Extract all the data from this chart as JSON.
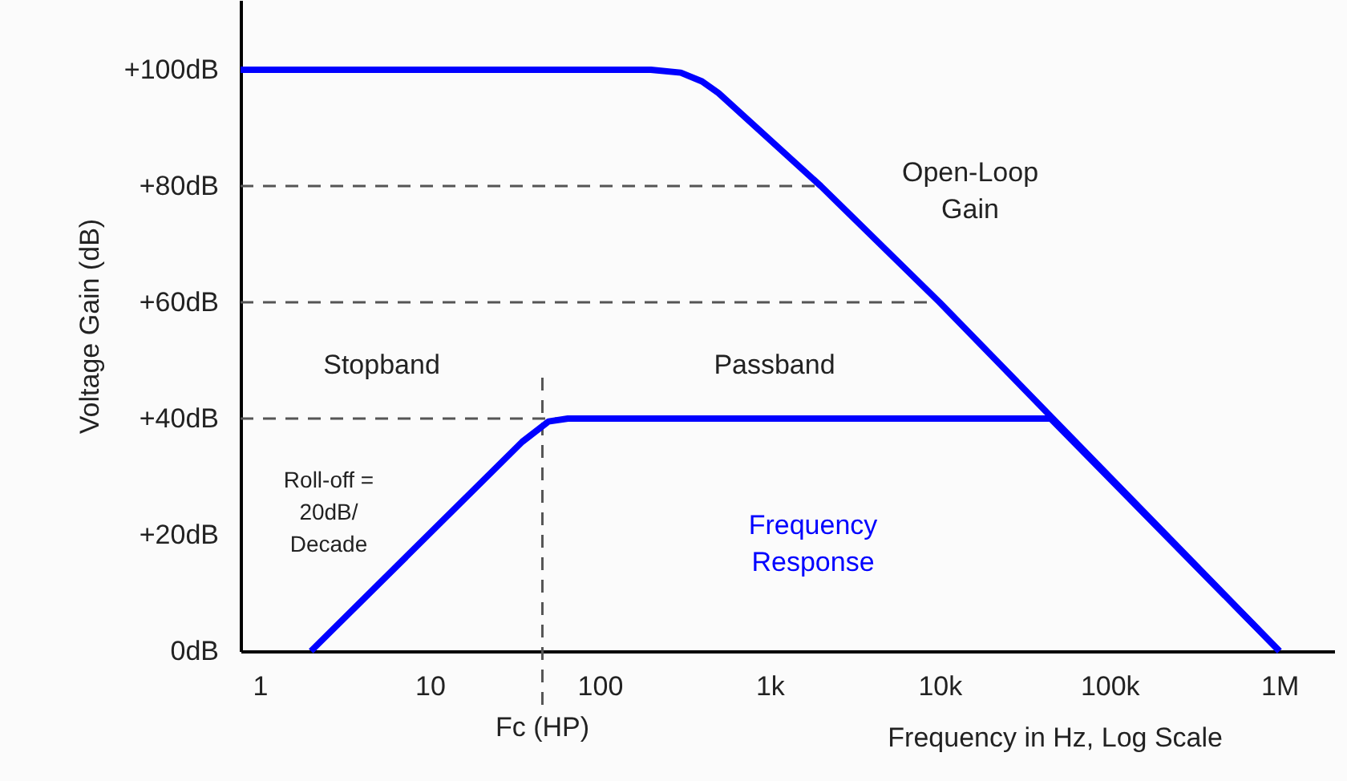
{
  "chart_data": {
    "type": "line",
    "xlabel": "Frequency in Hz, Log Scale",
    "ylabel": "Voltage Gain (dB)",
    "log": "x",
    "xlim": [
      0.77,
      2100000
    ],
    "ylim": [
      0,
      112
    ],
    "xticks": [
      1,
      10,
      100,
      {
        "value": 1000,
        "label": "1k"
      },
      {
        "value": 10000,
        "label": "10k"
      },
      {
        "value": 100000,
        "label": "100k"
      },
      {
        "value": 1000000,
        "label": "1M"
      }
    ],
    "yticks": [
      {
        "value": 0,
        "label": "0dB"
      },
      {
        "value": 20,
        "label": "+20dB"
      },
      {
        "value": 40,
        "label": "+40dB"
      },
      {
        "value": 60,
        "label": "+60dB"
      },
      {
        "value": 80,
        "label": "+80dB"
      },
      {
        "value": 100,
        "label": "+100dB"
      }
    ],
    "grid": false,
    "marker": "none",
    "line_style": "solid",
    "series": [
      {
        "color": "#0000ff",
        "x": [
          0.77,
          200,
          300,
          400,
          500,
          2000,
          10000,
          1000000
        ],
        "values": [
          100,
          100,
          99.5,
          98,
          96,
          80,
          60,
          0
        ]
      },
      {
        "name": "Frequency Response",
        "color": "#0000ff",
        "x": [
          2,
          35,
          50,
          65,
          45000,
          1000000
        ],
        "values": [
          0,
          36,
          39.5,
          40,
          40,
          0
        ]
      }
    ],
    "ref_lines": [
      {
        "axis": "y",
        "value": 80,
        "line_style": "dashed",
        "color": "#555555"
      },
      {
        "axis": "y",
        "value": 60,
        "line_style": "dashed",
        "color": "#555555"
      },
      {
        "axis": "y",
        "value": 40,
        "line_style": "dashed",
        "color": "#555555"
      },
      {
        "axis": "x",
        "value": 46,
        "label": "Fc (HP)",
        "line_style": "dashed",
        "color": "#555555"
      }
    ],
    "annotations": [
      "Stopband",
      "Passband",
      "Roll-off =\n20dB/\nDecade",
      "Open-Loop\nGain"
    ]
  }
}
